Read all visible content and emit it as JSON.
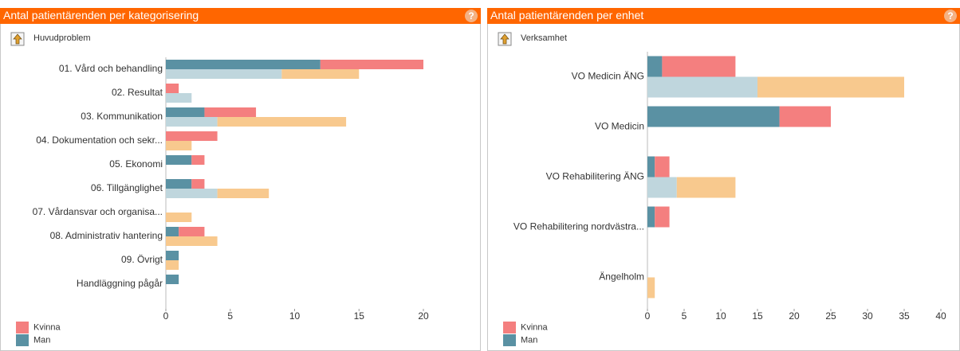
{
  "chart_data": [
    {
      "type": "bar",
      "title": "Antal patientärenden per kategorisering",
      "axis_label": "Huvudproblem",
      "categories": [
        "01. Vård och behandling",
        "02. Resultat",
        "03. Kommunikation",
        "04. Dokumentation och sekr...",
        "05. Ekonomi",
        "06. Tillgänglighet",
        "07. Vårdansvar och organisa...",
        "08. Administrativ hantering",
        "09. Övrigt",
        "Handläggning pågår"
      ],
      "series": [
        {
          "name": "Kvinna",
          "color": "#f47f7f",
          "values": [
            8,
            1,
            4,
            4,
            1,
            1,
            0,
            2,
            0,
            0
          ],
          "comparison_color": "#f8c98e",
          "comparison_values": [
            6,
            0,
            10,
            2,
            0,
            4,
            2,
            4,
            1,
            0
          ]
        },
        {
          "name": "Man",
          "color": "#5a91a3",
          "values": [
            12,
            0,
            3,
            0,
            2,
            2,
            0,
            1,
            1,
            1
          ],
          "comparison_color": "#bfd6dd",
          "comparison_values": [
            9,
            2,
            4,
            0,
            0,
            4,
            0,
            0,
            0,
            0
          ]
        }
      ],
      "xlim": [
        0,
        20
      ],
      "xticks": [
        0,
        5,
        10,
        15,
        20
      ]
    },
    {
      "type": "bar",
      "title": "Antal patientärenden per enhet",
      "axis_label": "Verksamhet",
      "categories": [
        "VO Medicin ÄNG",
        "VO Medicin",
        "VO Rehabilitering ÄNG",
        "VO Rehabilitering nordvästra...",
        "Ängelholm"
      ],
      "series": [
        {
          "name": "Kvinna",
          "color": "#f47f7f",
          "values": [
            10,
            7,
            2,
            2,
            0
          ],
          "comparison_color": "#f8c98e",
          "comparison_values": [
            20,
            0,
            8,
            0,
            1
          ]
        },
        {
          "name": "Man",
          "color": "#5a91a3",
          "values": [
            2,
            18,
            1,
            1,
            0
          ],
          "comparison_color": "#bfd6dd",
          "comparison_values": [
            15,
            0,
            4,
            0,
            0
          ]
        }
      ],
      "xlim": [
        0,
        40
      ],
      "xticks": [
        0,
        5,
        10,
        15,
        20,
        25,
        30,
        35,
        40
      ]
    }
  ]
}
